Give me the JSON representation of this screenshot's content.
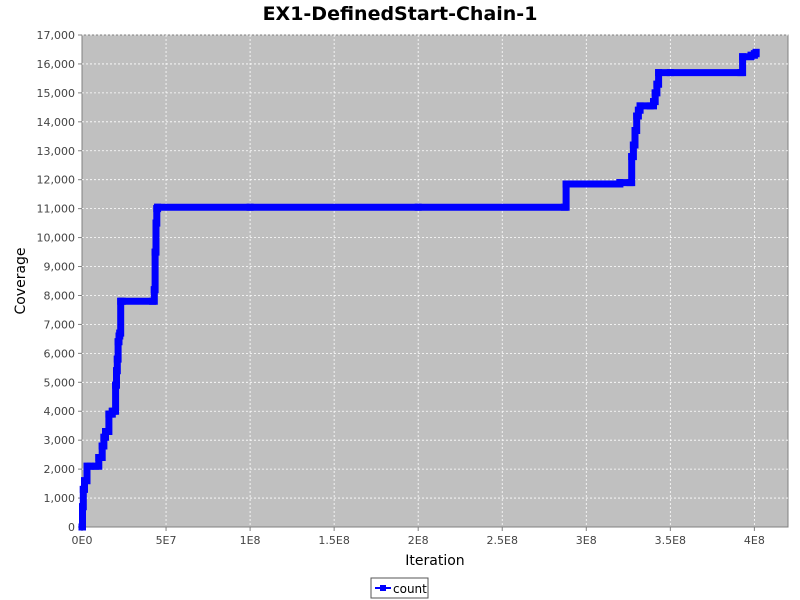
{
  "chart_data": {
    "type": "line",
    "title": "EX1-DefinedStart-Chain-1",
    "xlabel": "Iteration",
    "ylabel": "Coverage",
    "xlim": [
      0,
      420000000
    ],
    "ylim": [
      0,
      17000
    ],
    "x_ticks": [
      {
        "value": 0,
        "label": "0E0"
      },
      {
        "value": 50000000,
        "label": "5E7"
      },
      {
        "value": 100000000,
        "label": "1E8"
      },
      {
        "value": 150000000,
        "label": "1.5E8"
      },
      {
        "value": 200000000,
        "label": "2E8"
      },
      {
        "value": 250000000,
        "label": "2.5E8"
      },
      {
        "value": 300000000,
        "label": "3E8"
      },
      {
        "value": 350000000,
        "label": "3.5E8"
      },
      {
        "value": 400000000,
        "label": "4E8"
      }
    ],
    "y_ticks": [
      {
        "value": 0,
        "label": "0"
      },
      {
        "value": 1000,
        "label": "1,000"
      },
      {
        "value": 2000,
        "label": "2,000"
      },
      {
        "value": 3000,
        "label": "3,000"
      },
      {
        "value": 4000,
        "label": "4,000"
      },
      {
        "value": 5000,
        "label": "5,000"
      },
      {
        "value": 6000,
        "label": "6,000"
      },
      {
        "value": 7000,
        "label": "7,000"
      },
      {
        "value": 8000,
        "label": "8,000"
      },
      {
        "value": 9000,
        "label": "9,000"
      },
      {
        "value": 10000,
        "label": "10,000"
      },
      {
        "value": 11000,
        "label": "11,000"
      },
      {
        "value": 12000,
        "label": "12,000"
      },
      {
        "value": 13000,
        "label": "13,000"
      },
      {
        "value": 14000,
        "label": "14,000"
      },
      {
        "value": 15000,
        "label": "15,000"
      },
      {
        "value": 16000,
        "label": "16,000"
      },
      {
        "value": 17000,
        "label": "17,000"
      }
    ],
    "grid": true,
    "legend_position": "bottom-center",
    "plot_background": "#c0c0c0",
    "series": [
      {
        "name": "count",
        "color": "#0000ff",
        "step": true,
        "x": [
          0,
          300000,
          800000,
          1500000,
          3000000,
          5000000,
          8000000,
          10000000,
          12000000,
          13000000,
          14000000,
          15000000,
          16000000,
          17000000,
          18000000,
          19000000,
          20000000,
          20500000,
          21000000,
          21500000,
          22000000,
          22500000,
          23000000,
          24000000,
          42000000,
          43000000,
          43500000,
          44000000,
          44500000,
          45000000,
          100000000,
          200000000,
          287000000,
          288000000,
          300000000,
          318000000,
          320000000,
          326000000,
          327000000,
          328000000,
          329000000,
          330000000,
          331000000,
          332000000,
          338000000,
          340000000,
          341000000,
          342000000,
          343000000,
          350000000,
          392000000,
          393000000,
          398000000,
          400000000,
          401000000
        ],
        "values": [
          0,
          700,
          1300,
          1600,
          2100,
          2100,
          2100,
          2400,
          2800,
          3100,
          3300,
          3300,
          3900,
          3900,
          4000,
          4000,
          4900,
          5400,
          5800,
          6400,
          6600,
          6700,
          7800,
          7800,
          7800,
          8200,
          9500,
          10500,
          11000,
          11050,
          11050,
          11050,
          11050,
          11850,
          11850,
          11850,
          11900,
          11900,
          12800,
          13200,
          13700,
          14200,
          14400,
          14550,
          14550,
          14700,
          15000,
          15300,
          15700,
          15700,
          15700,
          16250,
          16300,
          16350,
          16400
        ]
      }
    ]
  }
}
